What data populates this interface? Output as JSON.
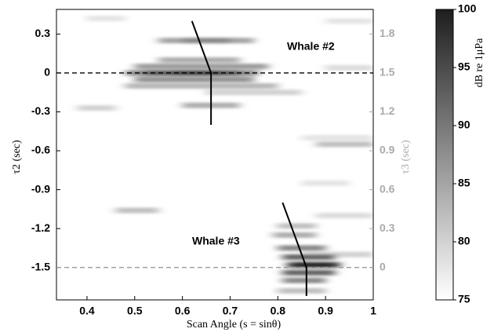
{
  "chart_data": {
    "type": "heatmap",
    "xlabel": "Scan Angle (s = sinθ)",
    "ylabel": "τ2 (sec)",
    "y2label": "τ3 (sec)",
    "colorbar_label": "dB re 1μPa",
    "xlim": [
      0.336,
      1
    ],
    "xticks": [
      0.4,
      0.5,
      0.6,
      0.7,
      0.8,
      0.9,
      1
    ],
    "ylim": [
      -1.75,
      0.49
    ],
    "yticks": [
      0.3,
      0,
      -0.3,
      -0.6,
      -0.9,
      -1.2,
      -1.5
    ],
    "y2lim": [
      -0.25,
      1.99
    ],
    "y2ticks": [
      1.8,
      1.5,
      1.2,
      0.9,
      0.6,
      0.3,
      0
    ],
    "clim": [
      75,
      100
    ],
    "cticks": [
      100,
      95,
      90,
      85,
      80,
      75
    ],
    "annotations": [
      "Whale #2",
      "Whale #3"
    ],
    "reference_lines": [
      {
        "axis": "y",
        "value": 0,
        "color": "#000000"
      },
      {
        "axis": "y2",
        "value": 0,
        "color": "#999999"
      }
    ],
    "tracks": [
      {
        "x": [
          0.62,
          0.66,
          0.66
        ],
        "y": [
          0.4,
          0,
          -0.4
        ]
      },
      {
        "x": [
          0.81,
          0.86,
          0.86
        ],
        "y": [
          -1.0,
          -1.5,
          -1.72
        ]
      }
    ],
    "streaks": [
      [
        0.4,
        0.48,
        0.42,
        78
      ],
      [
        0.9,
        1.0,
        0.4,
        78
      ],
      [
        0.85,
        1.0,
        -0.5,
        78
      ],
      [
        0.85,
        0.95,
        -0.85,
        78
      ],
      [
        0.9,
        1.0,
        0.04,
        79
      ],
      [
        0.88,
        1.0,
        -1.1,
        79
      ],
      [
        0.38,
        0.46,
        -0.27,
        80
      ],
      [
        0.65,
        0.85,
        -0.15,
        80
      ],
      [
        0.85,
        1.0,
        -1.4,
        80
      ],
      [
        0.88,
        1.0,
        -0.55,
        82
      ],
      [
        0.46,
        0.55,
        -1.06,
        82
      ],
      [
        0.8,
        0.88,
        -1.18,
        82
      ],
      [
        0.8,
        0.9,
        -1.68,
        82
      ],
      [
        0.48,
        0.8,
        -0.1,
        83
      ],
      [
        0.55,
        0.72,
        0.1,
        84
      ],
      [
        0.6,
        0.72,
        -0.25,
        84
      ],
      [
        0.79,
        0.88,
        -1.25,
        84
      ],
      [
        0.55,
        0.75,
        0.25,
        85
      ],
      [
        0.5,
        0.78,
        0.05,
        86
      ],
      [
        0.5,
        0.75,
        -0.05,
        87
      ],
      [
        0.48,
        0.76,
        0.0,
        88
      ],
      [
        0.6,
        0.7,
        0.25,
        88
      ],
      [
        0.8,
        0.9,
        -1.35,
        88
      ],
      [
        0.81,
        0.9,
        -1.6,
        88
      ],
      [
        0.81,
        0.92,
        -1.42,
        92
      ],
      [
        0.81,
        0.92,
        -1.54,
        92
      ],
      [
        0.52,
        0.72,
        0.0,
        93
      ],
      [
        0.58,
        0.68,
        0.0,
        95
      ],
      [
        0.82,
        0.93,
        -1.48,
        97
      ],
      [
        0.84,
        0.91,
        -1.48,
        99
      ]
    ]
  }
}
